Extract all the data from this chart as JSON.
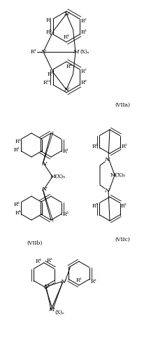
{
  "background_color": "#ffffff",
  "fig_width": 2.07,
  "fig_height": 4.98,
  "dpi": 100,
  "label_viia": "(VIIa)",
  "label_viib": "(VIIb)",
  "label_viic": "(VIIc)"
}
